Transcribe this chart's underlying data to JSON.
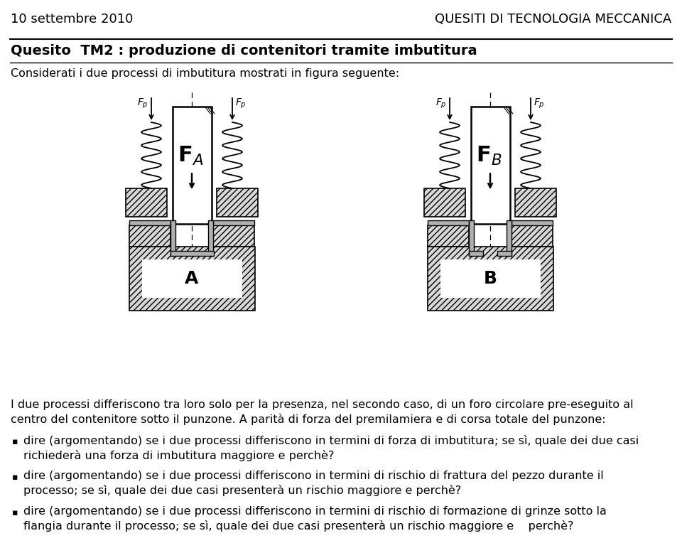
{
  "header_left": "10 settembre 2010",
  "header_right": "QUESITI DI TECNOLOGIA MECCANICA",
  "title": "Quesito  TM2 : produzione di contenitori tramite imbutitura",
  "subtitle": "Considerati i due processi di imbutitura mostrati in figura seguente:",
  "paragraph1": "I due processi differiscono tra loro solo per la presenza, nel secondo caso, di un foro circolare pre-eseguito al\ncentro del contenitore sotto il punzone. A parità di forza del premilamiera e di corsa totale del punzone:",
  "bullet1": "dire (argomentando) se i due processi differiscono in termini di forza di imbutitura; se sì, quale dei due casi\nrichiederà una forza di imbutitura maggiore e perchè?",
  "bullet2": "dire (argomentando) se i due processi differiscono in termini di rischio di frattura del pezzo durante il\nprocesso; se sì, quale dei due casi presenterà un rischio maggiore e perchè?",
  "bullet3": "dire (argomentando) se i due processi differiscono in termini di rischio di formazione di grinze sotto la\nflangia durante il processo; se sì, quale dei due casi presenterà un rischio maggiore e    perchè?",
  "background_color": "#ffffff",
  "text_color": "#000000",
  "header_fontsize": 13,
  "title_fontsize": 14,
  "body_fontsize": 11.5
}
